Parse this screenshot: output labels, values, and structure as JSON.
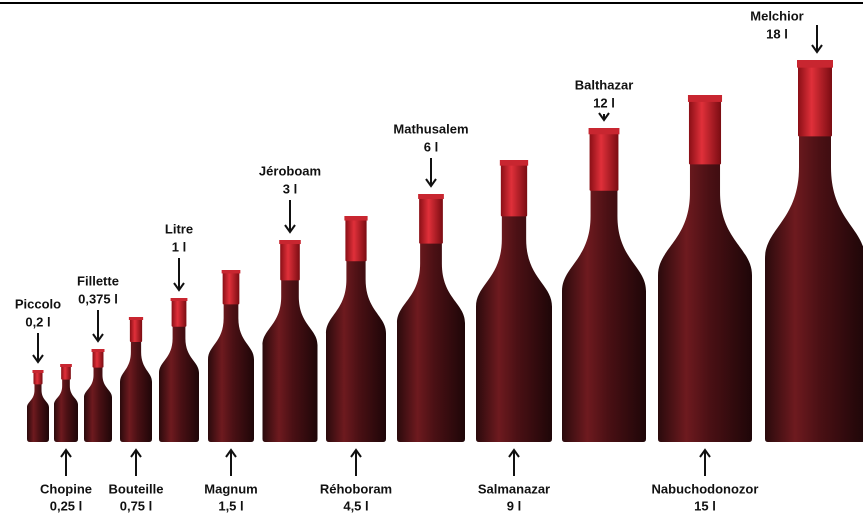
{
  "bottles": [
    {
      "name": "Piccolo",
      "size": "0,2 l"
    },
    {
      "name": "Chopine",
      "size": "0,25 l"
    },
    {
      "name": "Fillette",
      "size": "0,375 l"
    },
    {
      "name": "Bouteille",
      "size": "0,75 l"
    },
    {
      "name": "Litre",
      "size": "1 l"
    },
    {
      "name": "Magnum",
      "size": "1,5 l"
    },
    {
      "name": "Jéroboam",
      "size": "3 l"
    },
    {
      "name": "Réhoboram",
      "size": "4,5 l"
    },
    {
      "name": "Mathusalem",
      "size": "6 l"
    },
    {
      "name": "Salmanazar",
      "size": "9 l"
    },
    {
      "name": "Balthazar",
      "size": "12 l"
    },
    {
      "name": "Nabuchodonozor",
      "size": "15 l"
    },
    {
      "name": "Melchior",
      "size": "18 l"
    }
  ]
}
